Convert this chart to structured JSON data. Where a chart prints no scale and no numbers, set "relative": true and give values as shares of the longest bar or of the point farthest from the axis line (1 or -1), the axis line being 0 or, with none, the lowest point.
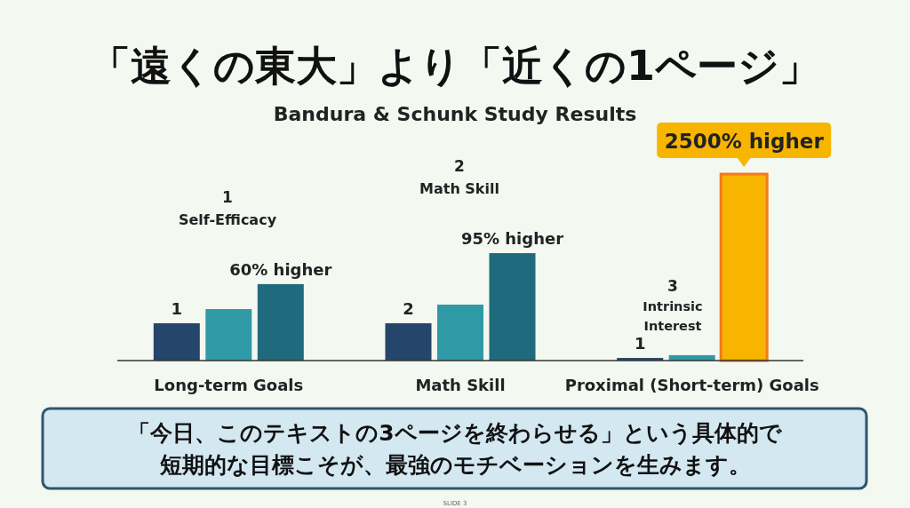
{
  "chart_data": {
    "type": "bar",
    "title": "「遠くの東大」より「近くの1ページ」",
    "subtitle": "Bandura & Schunk Study Results",
    "categories": [
      "Long-term Goals",
      "Math Skill",
      "Proximal (Short-term) Goals"
    ],
    "relative": true,
    "series": [
      {
        "color": "#24466a",
        "values": [
          0.2,
          0.2,
          0.014
        ]
      },
      {
        "color": "#2f9aa6",
        "values": [
          0.276,
          0.3,
          0.029
        ]
      },
      {
        "color": "#1f6a7c",
        "colors": [
          "#1f6a7c",
          "#1f6a7c",
          "#f7b500"
        ],
        "values": [
          0.41,
          0.576,
          1
        ]
      }
    ],
    "annotations": [
      "1",
      "60% higher",
      "1\nSelf-Efficacy",
      "2",
      "95% higher",
      "2\nMath Skill",
      "1",
      "2500% higher",
      "3\nIntrinsic\nInterest",
      "「今日、このテキストの3ページを終わらせる」という具体的で短期的な目標こそが、最強のモチベーションを生みます。",
      "SLIDE 3"
    ]
  }
}
